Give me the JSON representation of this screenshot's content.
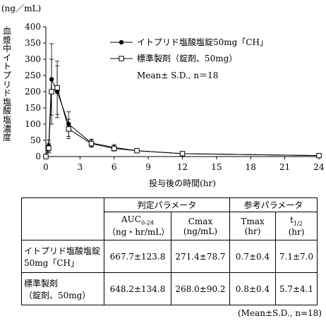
{
  "chart_data": {
    "type": "line",
    "y_unit": "(ng／mL)",
    "ylabel": "血漿中イトプリド塩酸塩濃度",
    "xlabel": "投与後の時間(hr)",
    "xlim": [
      0,
      24
    ],
    "ylim": [
      0,
      400
    ],
    "x_ticks": [
      0,
      3,
      6,
      9,
      12,
      15,
      18,
      21,
      24
    ],
    "y_ticks": [
      0,
      50,
      100,
      150,
      200,
      250,
      300,
      350,
      400
    ],
    "grid": false,
    "legend_position": "top-right",
    "legend_note": "Mean± S.D., n＝18",
    "series": [
      {
        "name": "イトプリド塩酸塩錠50mg「CH」",
        "marker": "filled-circle",
        "x": [
          0,
          0.25,
          0.5,
          1,
          2,
          4,
          6,
          8,
          12,
          24
        ],
        "y": [
          0,
          33,
          238,
          200,
          100,
          42,
          28,
          18,
          9,
          3
        ],
        "err": [
          0,
          18,
          110,
          80,
          38,
          12,
          9,
          5,
          3,
          1
        ]
      },
      {
        "name": "標準製剤（錠剤、50mg）",
        "marker": "open-square",
        "x": [
          0,
          0.25,
          0.5,
          1,
          2,
          4,
          6,
          8,
          12,
          24
        ],
        "y": [
          0,
          26,
          200,
          212,
          85,
          40,
          25,
          18,
          9,
          3
        ],
        "err": [
          0,
          15,
          100,
          82,
          30,
          11,
          8,
          5,
          3,
          1
        ]
      }
    ]
  },
  "table": {
    "group1": "判定パラメータ",
    "group2": "参考パラメータ",
    "col_auc_main": "AUC",
    "col_auc_sub": "0-24",
    "col_auc_unit": "（ng・hr/mL）",
    "col_cmax": "Cmax",
    "col_cmax_unit": "(ng/mL)",
    "col_tmax": "Tmax",
    "col_tmax_unit": "(hr)",
    "col_thalf_main": "t",
    "col_thalf_sub": "1/2",
    "col_thalf_unit": "(hr)",
    "rows": [
      {
        "label1": "イトプリド塩酸塩錠",
        "label2": "50mg「CH」",
        "auc": "667.7±123.8",
        "cmax": "271.4±78.7",
        "tmax": "0.7±0.4",
        "thalf": "7.1±7.0"
      },
      {
        "label1": "標準製剤",
        "label2": "（錠剤、50mg）",
        "auc": "648.2±134.8",
        "cmax": "268.0±90.2",
        "tmax": "0.8±0.4",
        "thalf": "5.7±4.1"
      }
    ]
  },
  "footnote": "(Mean±S.D., n=18)"
}
